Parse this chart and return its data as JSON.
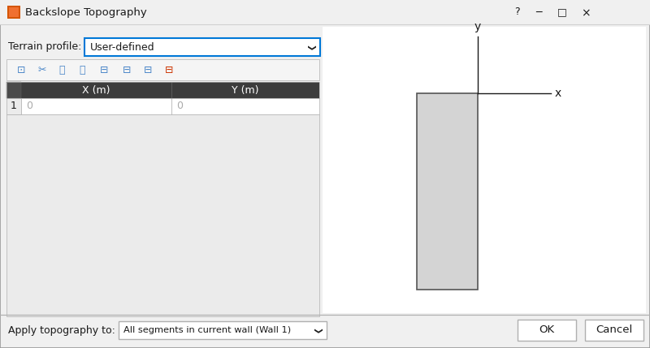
{
  "title": "Backslope Topography",
  "bg_color": "#f0f0f0",
  "white": "#ffffff",
  "dark_text": "#1a1a1a",
  "border_color": "#b0b0b0",
  "header_bg": "#3c3c3c",
  "header_text": "#ffffff",
  "combo_border_active": "#0078d7",
  "combo_border_normal": "#b0b0b0",
  "label_terrain": "Terrain profile:",
  "combo_terrain": "User-defined",
  "col1_header": "X (m)",
  "col2_header": "Y (m)",
  "row1_num": "1",
  "row1_x": "0",
  "row1_y": "0",
  "label_apply": "Apply topography to:",
  "combo_apply": "All segments in current wall (Wall 1)",
  "btn_ok": "OK",
  "btn_cancel": "Cancel",
  "rect_fill": "#d4d4d4",
  "rect_border": "#555555",
  "cell_bg": "#ebebeb",
  "icon_blue": "#4a86c8",
  "icon_red": "#cc3300"
}
